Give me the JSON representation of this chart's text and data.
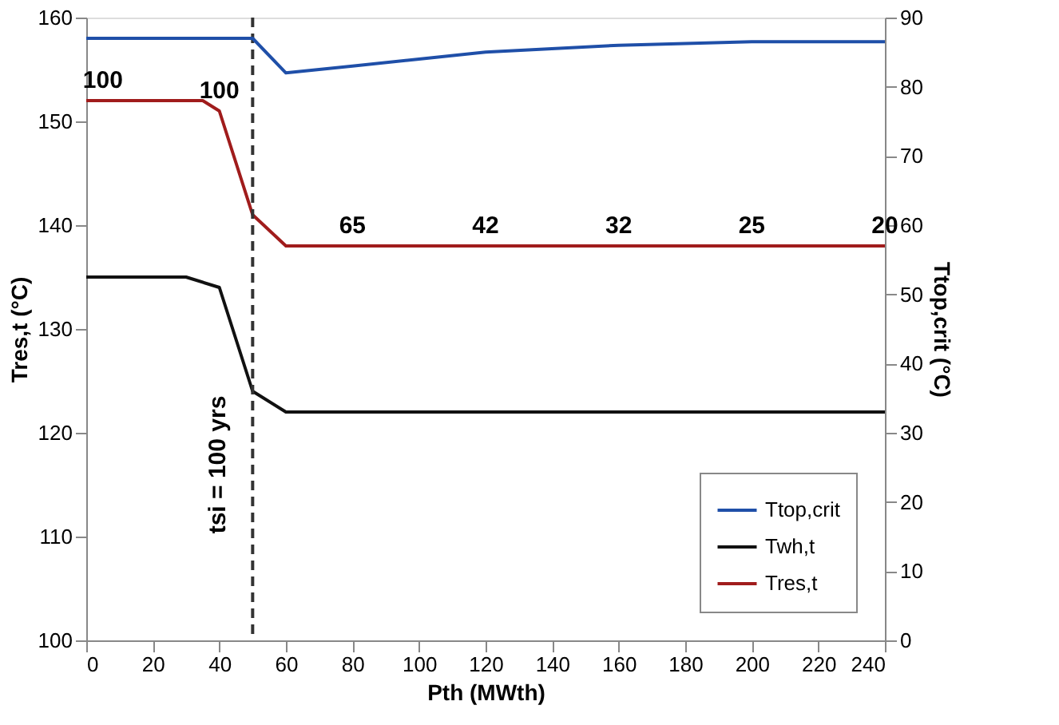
{
  "chart_data": {
    "type": "line",
    "xlabel": "Pth (MWth)",
    "ylabel": "Tres,t (°C)",
    "y2label": "Ttop,crit (°C)",
    "xlim": [
      0,
      240
    ],
    "xticks": [
      0,
      20,
      40,
      60,
      80,
      100,
      120,
      140,
      160,
      180,
      200,
      220,
      240
    ],
    "ylim": [
      100,
      160
    ],
    "yticks": [
      100,
      110,
      120,
      130,
      140,
      150,
      160
    ],
    "y2lim": [
      0,
      90
    ],
    "y2ticks": [
      0,
      10,
      20,
      30,
      40,
      50,
      60,
      70,
      80,
      90
    ],
    "legend": "bottom right",
    "grid": false,
    "marker": "none",
    "line_style": "solid",
    "series": [
      {
        "name": "Ttop,crit",
        "color": "#1f4fa8",
        "axis": "y2",
        "x": [
          0,
          50,
          60,
          80,
          100,
          120,
          160,
          200,
          240
        ],
        "values": [
          87,
          87,
          82,
          83,
          84,
          85,
          86,
          86.5,
          86.5
        ]
      },
      {
        "name": "Twh,t",
        "color": "#111111",
        "x": [
          0,
          30,
          40,
          50,
          60,
          240
        ],
        "values": [
          135,
          135,
          134,
          124,
          122,
          122
        ]
      },
      {
        "name": "Tres,t",
        "color": "#a01c1c",
        "x": [
          0,
          35,
          40,
          50,
          60,
          240
        ],
        "values": [
          152,
          152,
          151,
          141,
          138,
          138
        ]
      }
    ],
    "ref_lines": [
      {
        "axis": "x",
        "value": 50,
        "color": "#333333",
        "line_style": "dashed"
      }
    ],
    "annotations": [
      "tsi = 100 yrs",
      {
        "text": "100",
        "x": 5,
        "y": 152
      },
      {
        "text": "100",
        "x": 40,
        "y": 151
      },
      {
        "text": "65",
        "x": 80,
        "y": 138
      },
      {
        "text": "42",
        "x": 120,
        "y": 138
      },
      {
        "text": "32",
        "x": 160,
        "y": 138
      },
      {
        "text": "25",
        "x": 200,
        "y": 138
      },
      {
        "text": "20",
        "x": 240,
        "y": 138
      }
    ]
  }
}
